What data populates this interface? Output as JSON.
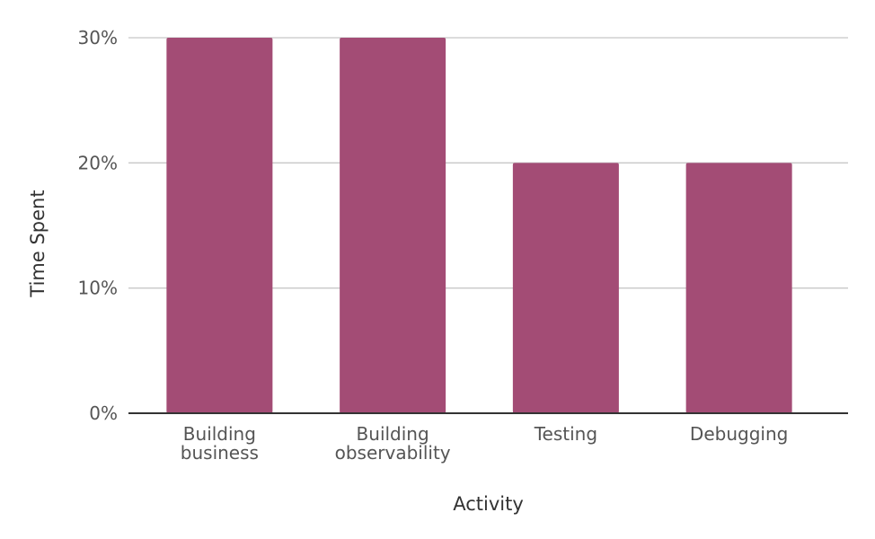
{
  "chart_data": {
    "type": "bar",
    "categories": [
      [
        "Building",
        "business"
      ],
      [
        "Building",
        "observability"
      ],
      [
        "Testing"
      ],
      [
        "Debugging"
      ]
    ],
    "values": [
      30,
      30,
      20,
      20
    ],
    "unit": "%",
    "xlabel": "Activity",
    "ylabel": "Time Spent",
    "ylim": [
      0,
      30
    ],
    "yticks": [
      0,
      10,
      20,
      30
    ],
    "ytick_labels": [
      "0%",
      "10%",
      "20%",
      "30%"
    ],
    "grid": true,
    "bar_color": "#a34c75",
    "legend": "none"
  }
}
